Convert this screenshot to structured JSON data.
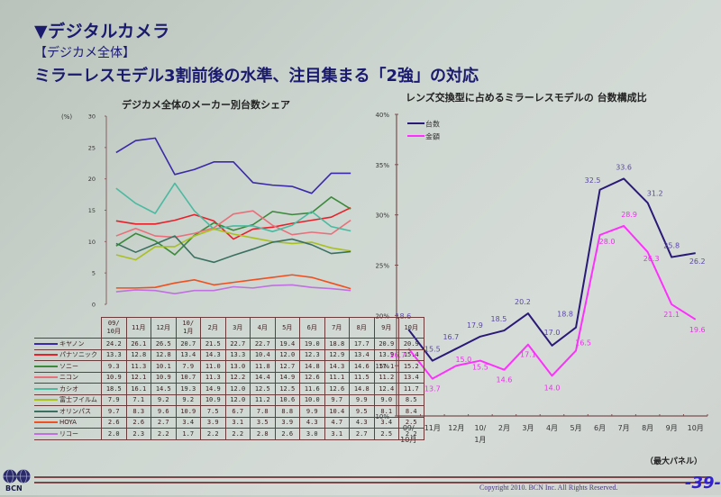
{
  "header": {
    "section": "▼デジタルカメラ",
    "subsection": "【デジカメ全体】",
    "headline": "ミラーレスモデル3割前後の水準、注目集まる「2強」の対応"
  },
  "footer": {
    "copyright": "Copyright 2010. BCN Inc. All Rights Reserved.",
    "page": "-39-",
    "logo_text": "BCN",
    "note": "（最大パネル）"
  },
  "chart_data": [
    {
      "type": "line",
      "title": "デジカメ全体のメーカー別台数シェア",
      "ylabel": "(%)",
      "ylim": [
        0,
        30
      ],
      "yticks": [
        0,
        5,
        10,
        15,
        20,
        25,
        30
      ],
      "categories": [
        "09/10月",
        "11月",
        "12月",
        "10/1月",
        "2月",
        "3月",
        "4月",
        "5月",
        "6月",
        "7月",
        "8月",
        "9月",
        "10月"
      ],
      "category_lines": [
        [
          "09/",
          "10月"
        ],
        [
          "11月"
        ],
        [
          "12月"
        ],
        [
          "10/",
          "1月"
        ],
        [
          "2月"
        ],
        [
          "3月"
        ],
        [
          "4月"
        ],
        [
          "5月"
        ],
        [
          "6月"
        ],
        [
          "7月"
        ],
        [
          "8月"
        ],
        [
          "9月"
        ],
        [
          "10月"
        ]
      ],
      "legend_position": "table-left",
      "series": [
        {
          "name": "キヤノン",
          "color": "#3a2aa8",
          "values": [
            24.2,
            26.1,
            26.5,
            20.7,
            21.5,
            22.7,
            22.7,
            19.4,
            19.0,
            18.8,
            17.7,
            20.9,
            20.9
          ]
        },
        {
          "name": "パナソニック",
          "color": "#e8202a",
          "values": [
            13.3,
            12.8,
            12.8,
            13.4,
            14.3,
            13.3,
            10.4,
            12.0,
            12.3,
            12.9,
            13.4,
            13.9,
            15.4
          ]
        },
        {
          "name": "ソニー",
          "color": "#3a8a3a",
          "values": [
            9.3,
            11.3,
            10.1,
            7.9,
            11.0,
            13.0,
            11.8,
            12.7,
            14.8,
            14.3,
            14.6,
            17.1,
            15.2
          ]
        },
        {
          "name": "ニコン",
          "color": "#e8707a",
          "values": [
            10.9,
            12.1,
            10.9,
            10.7,
            11.3,
            12.2,
            14.4,
            14.9,
            12.6,
            11.1,
            11.5,
            11.2,
            13.4
          ]
        },
        {
          "name": "カシオ",
          "color": "#4abaa0",
          "values": [
            18.5,
            16.1,
            14.5,
            19.3,
            14.9,
            12.0,
            12.5,
            12.5,
            11.6,
            12.6,
            14.8,
            12.4,
            11.7
          ]
        },
        {
          "name": "富士フイルム",
          "color": "#a8c020",
          "values": [
            7.9,
            7.1,
            9.2,
            9.2,
            10.9,
            12.0,
            11.2,
            10.6,
            10.0,
            9.7,
            9.9,
            9.0,
            8.5
          ]
        },
        {
          "name": "オリンパス",
          "color": "#3a7060",
          "values": [
            9.7,
            8.3,
            9.6,
            10.9,
            7.5,
            6.7,
            7.8,
            8.8,
            9.9,
            10.4,
            9.5,
            8.1,
            8.4
          ]
        },
        {
          "name": "HOYA",
          "color": "#f05020",
          "values": [
            2.6,
            2.6,
            2.7,
            3.4,
            3.9,
            3.1,
            3.5,
            3.9,
            4.3,
            4.7,
            4.3,
            3.4,
            2.5
          ]
        },
        {
          "name": "リコー",
          "color": "#c070e0",
          "values": [
            2.0,
            2.3,
            2.2,
            1.7,
            2.2,
            2.2,
            2.8,
            2.6,
            3.0,
            3.1,
            2.7,
            2.5,
            2.2
          ]
        }
      ]
    },
    {
      "type": "line",
      "title": "レンズ交換型に占めるミラーレスモデルの 台数構成比",
      "ylim": [
        10,
        40
      ],
      "yticks": [
        "10%",
        "15%",
        "20%",
        "25%",
        "30%",
        "35%",
        "40%"
      ],
      "categories": [
        "09/10月",
        "11月",
        "12月",
        "10/1月",
        "2月",
        "3月",
        "4月",
        "5月",
        "6月",
        "7月",
        "8月",
        "9月",
        "10月"
      ],
      "category_lines": [
        [
          "09/",
          "10月"
        ],
        [
          "11月"
        ],
        [
          "12月"
        ],
        [
          "10/",
          "1月"
        ],
        [
          "2月"
        ],
        [
          "3月"
        ],
        [
          "4月"
        ],
        [
          "5月"
        ],
        [
          "6月"
        ],
        [
          "7月"
        ],
        [
          "8月"
        ],
        [
          "9月"
        ],
        [
          "10月"
        ]
      ],
      "legend_position": "top-left",
      "series": [
        {
          "name": "台数",
          "color": "#2a1a78",
          "label_color": "#5a4aa0",
          "values": [
            18.6,
            15.5,
            16.7,
            17.9,
            18.5,
            20.2,
            17.0,
            18.8,
            32.5,
            33.6,
            31.2,
            25.8,
            26.2
          ]
        },
        {
          "name": "金額",
          "color": "#ff30ff",
          "label_color": "#ee30ee",
          "values": [
            16.7,
            13.7,
            15.0,
            15.5,
            14.6,
            17.1,
            14.0,
            16.5,
            28.0,
            28.9,
            26.3,
            21.1,
            19.6
          ]
        }
      ]
    }
  ]
}
